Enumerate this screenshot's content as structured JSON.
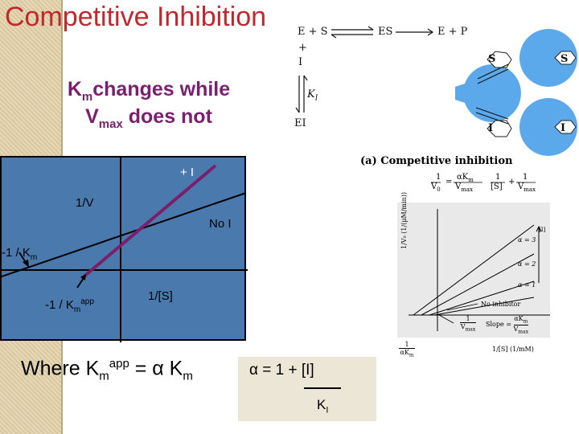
{
  "slide": {
    "title": "Competitive Inhibition",
    "subtitle_line1_main": "K",
    "subtitle_line1_sub": "m",
    "subtitle_line1_rest": "changes while",
    "subtitle_line2_main": "V",
    "subtitle_line2_sub": "max",
    "subtitle_line2_rest": " does not"
  },
  "plot": {
    "label_plus_i": "+ I",
    "label_y": "1/V",
    "label_no_i": "No I",
    "label_x": "1/[S]",
    "label_neg_km_main": "-1 / K",
    "label_neg_km_sub": "m",
    "label_neg_kmapp_main": "-1 / K",
    "label_neg_kmapp_sub": "m",
    "label_neg_kmapp_sup": "app",
    "colors": {
      "background": "#4a7aad",
      "inhibited_line": "#7a1f6a",
      "axis": "#000000"
    }
  },
  "formula": {
    "text_where": "Where K",
    "sub_m": "m",
    "sup_app": "app",
    "text_eq": " = α K",
    "sub_m2": "m"
  },
  "alpha_box": {
    "eq_text": "α = 1 +  [I]",
    "denom_main": "K",
    "denom_sub": "I"
  },
  "scheme": {
    "eq_left": "E + S",
    "eq_es": "ES",
    "eq_product": "E + P",
    "plus": "+",
    "inhibitor": "I",
    "ki": "K",
    "ki_sub": "I",
    "ei": "EI",
    "s_label": "S",
    "i_label": "I"
  },
  "caption": "(a) Competitive inhibition",
  "equation": {
    "lhs_num": "1",
    "lhs_den": "V",
    "lhs_den_sub": "0",
    "eq": "=",
    "frac1_num": "αK",
    "frac1_num_sub": "m",
    "frac1_den": "V",
    "frac1_den_sub": "max",
    "frac2_num": "1",
    "frac2_den": "[S]",
    "plus": "+",
    "frac3_num": "1",
    "frac3_den": "V",
    "frac3_den_sub": "max"
  },
  "graph": {
    "y_label": "1/V₀ (1/(μM/min))",
    "bracket_label": "[I]",
    "alpha3": "α = 3",
    "alpha2": "α = 2",
    "alpha1": "α = 1",
    "no_inhibitor": "No inhibitor",
    "vmax_num": "1",
    "vmax_den": "V",
    "vmax_den_sub": "max",
    "neg_km_num": "1",
    "neg_km_den": "αK",
    "neg_km_den_sub": "m",
    "slope_label": "Slope =",
    "slope_num": "αK",
    "slope_num_sub": "m",
    "slope_den": "V",
    "slope_den_sub": "max",
    "x_label": "1/[S] (1/mM)"
  }
}
